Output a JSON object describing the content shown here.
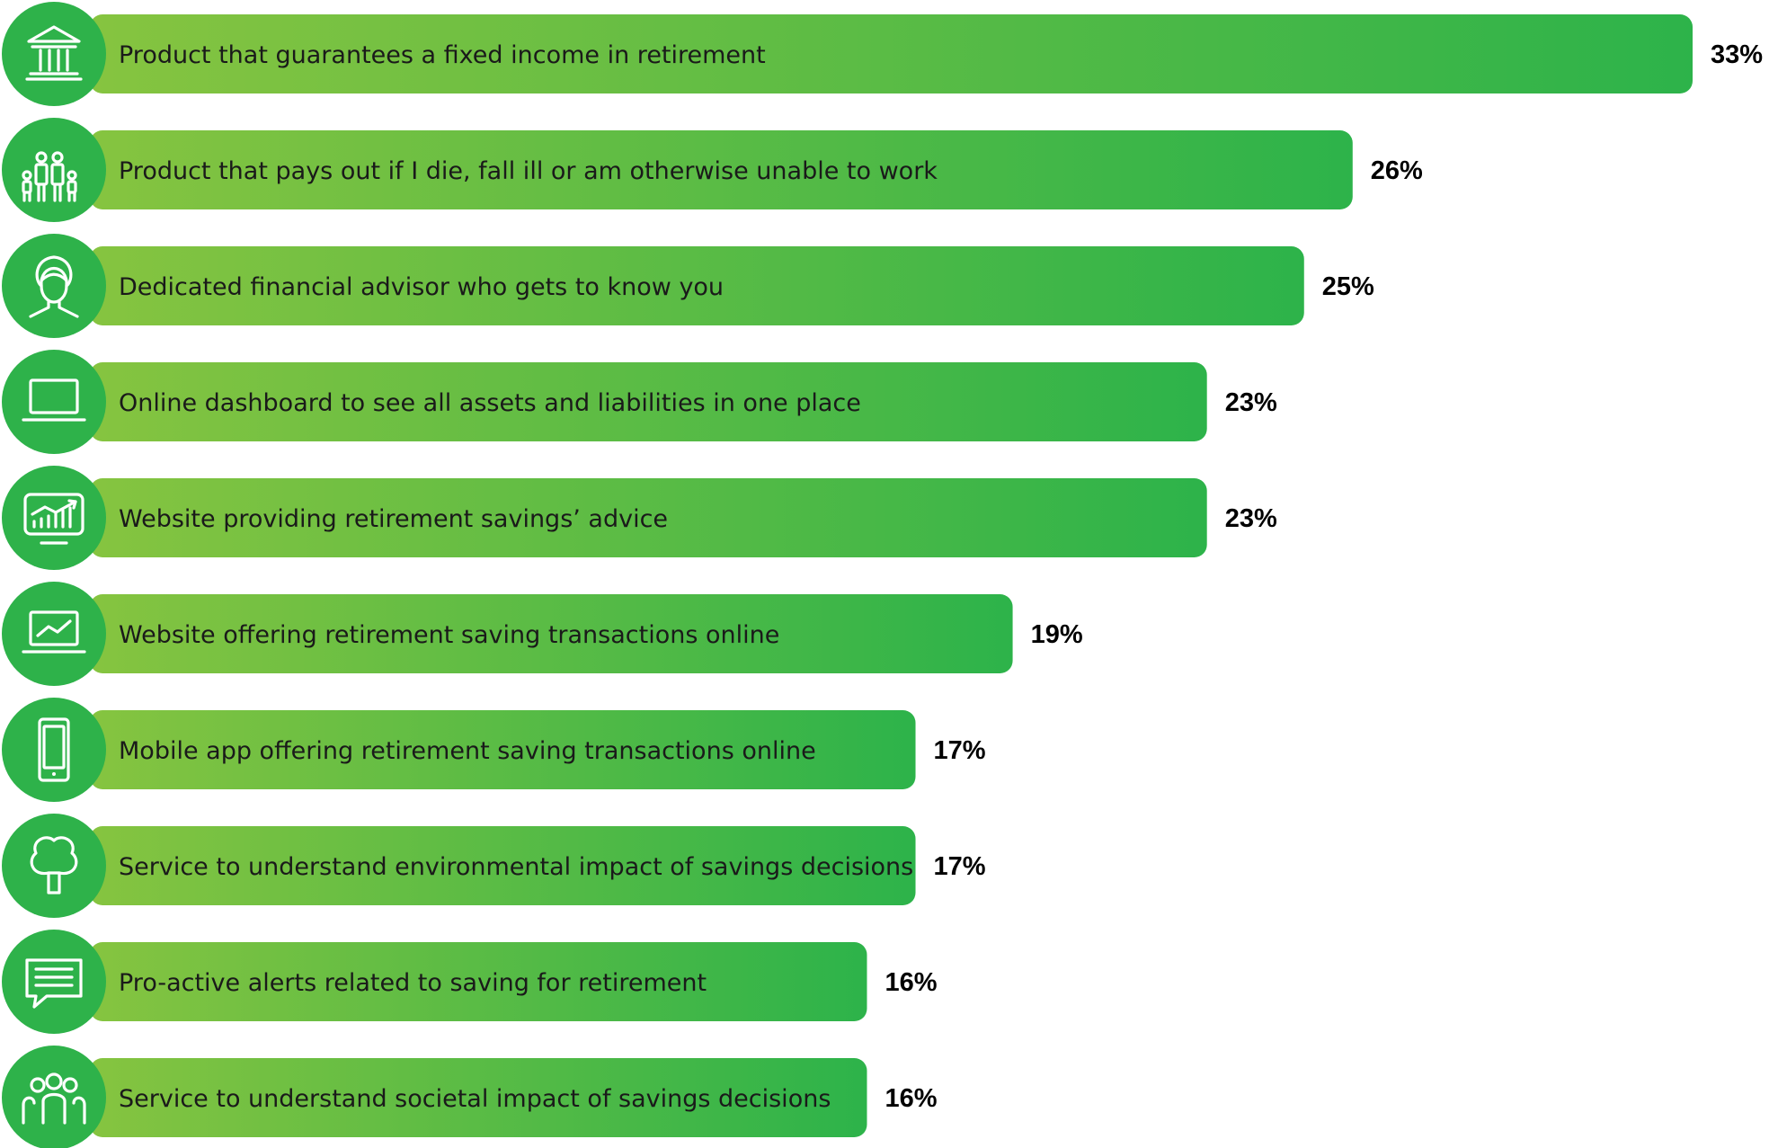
{
  "chart_data": {
    "type": "bar",
    "orientation": "horizontal",
    "categories": [
      "Product that guarantees a fixed income in retirement",
      "Product that pays out if I die, fall ill or am otherwise unable to work",
      "Dedicated financial advisor who gets to know you",
      "Online dashboard to see all assets and liabilities in one place",
      "Website providing retirement savings’ advice",
      "Website offering retirement saving transactions online",
      "Mobile app offering retirement saving transactions online",
      "Service to understand environmental impact of savings decisions",
      "Pro-active alerts related to saving for retirement",
      "Service to understand societal impact of savings decisions"
    ],
    "values": [
      33,
      26,
      25,
      23,
      23,
      19,
      17,
      17,
      16,
      16
    ],
    "value_labels": [
      "33%",
      "26%",
      "25%",
      "23%",
      "23%",
      "19%",
      "17%",
      "17%",
      "16%",
      "16%"
    ],
    "icons": [
      "bank-icon",
      "family-icon",
      "advisor-icon",
      "laptop-icon",
      "chart-monitor-icon",
      "trend-laptop-icon",
      "mobile-phone-icon",
      "tree-icon",
      "chat-message-icon",
      "people-group-icon"
    ],
    "title": "",
    "xlabel": "",
    "ylabel": "",
    "grid": false,
    "legend": "none",
    "colors": {
      "bar_gradient_start": "#86c440",
      "bar_gradient_end": "#2db34a",
      "icon_circle": "#2eb24a",
      "label_text": "#1a1a1a",
      "value_text": "#000000"
    }
  }
}
